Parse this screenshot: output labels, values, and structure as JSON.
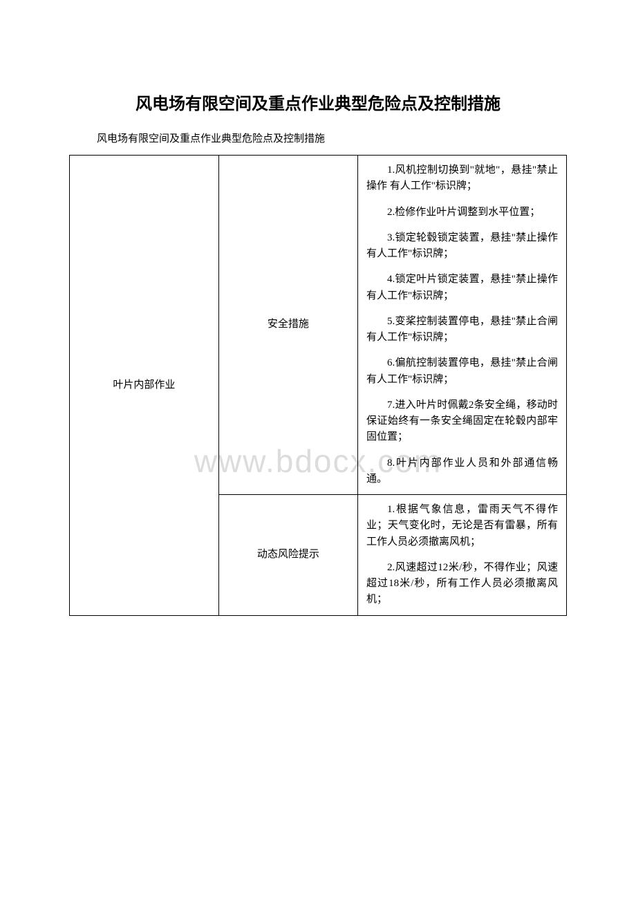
{
  "title": "风电场有限空间及重点作业典型危险点及控制措施",
  "subtitle": "风电场有限空间及重点作业典型危险点及控制措施",
  "watermark": "www.bdocx.com",
  "table": {
    "col1": "叶片内部作业",
    "row1_col2": "安全措施",
    "row1_items": [
      "1.风机控制切换到\"就地\"，悬挂\"禁止操作 有人工作\"标识牌；",
      "2.检修作业叶片调整到水平位置；",
      "3.锁定轮毂锁定装置，悬挂\"禁止操作 有人工作\"标识牌；",
      "4.锁定叶片锁定装置，悬挂\"禁止操作 有人工作\"标识牌；",
      "5.变桨控制装置停电，悬挂\"禁止合闸 有人工作\"标识牌；",
      "6.偏航控制装置停电，悬挂\"禁止合闸 有人工作\"标识牌；",
      "7.进入叶片时佩戴2条安全绳，移动时保证始终有一条安全绳固定在轮毂内部牢固位置；",
      "8.叶片内部作业人员和外部通信畅通。"
    ],
    "row2_col2": "动态风险提示",
    "row2_items": [
      "1.根据气象信息，雷雨天气不得作业；天气变化时，无论是否有雷暴，所有工作人员必须撤离风机；",
      "2.风速超过12米/秒，不得作业；风速超过18米/秒，所有工作人员必须撤离风机；"
    ]
  }
}
